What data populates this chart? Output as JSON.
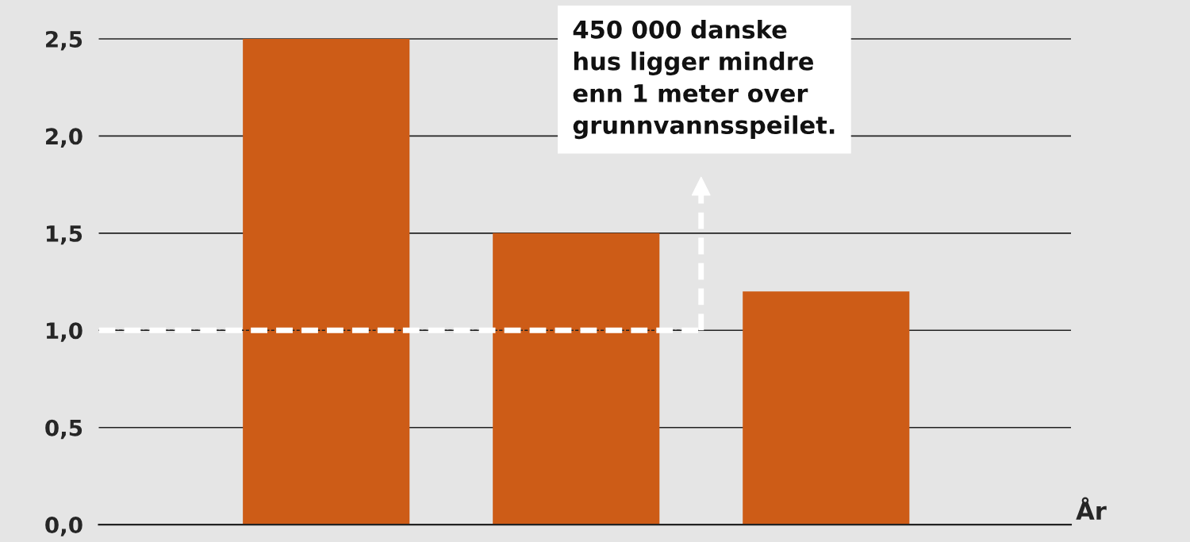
{
  "chart_data": {
    "type": "bar",
    "categories": [
      null,
      null,
      null
    ],
    "values": [
      2.5,
      1.5,
      1.2
    ],
    "color": "#cd5c17",
    "xlabel": "År",
    "ylim": [
      0,
      2.7
    ],
    "yticks": [
      {
        "value": 0,
        "label": "0,0"
      },
      {
        "value": 0.5,
        "label": "0,5"
      },
      {
        "value": 1.0,
        "label": "1,0"
      },
      {
        "value": 1.5,
        "label": "1,5"
      },
      {
        "value": 2.0,
        "label": "2,0"
      },
      {
        "value": 2.5,
        "label": "2,5"
      }
    ],
    "grid": "y",
    "ref_lines": [
      {
        "axis": "y",
        "value": 1.0,
        "color": "#ffffff",
        "line_style": "dashed"
      },
      {
        "axis": "y",
        "value": 1.0,
        "color": "#222222",
        "line_style": "dashed"
      }
    ],
    "annotations": [
      "450 000 danske\nhus ligger mindre\nenn 1 meter over\ngrunnvannsspeilet."
    ]
  }
}
